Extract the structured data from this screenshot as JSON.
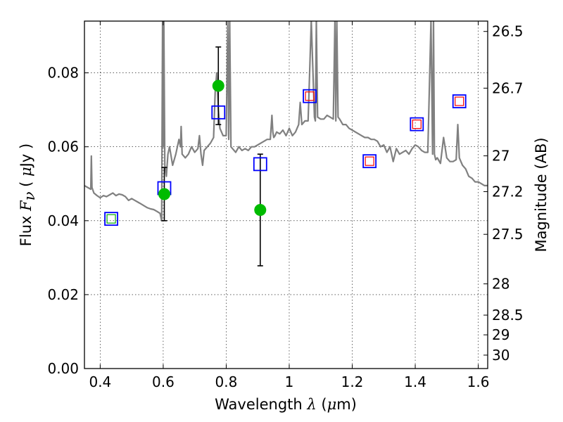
{
  "chart_data": {
    "type": "scatter",
    "xlabel": {
      "prefix": "Wavelength ",
      "symbol": "λ",
      "unit_open": " (",
      "unit_mu": "μ",
      "unit_rest": "m)"
    },
    "ylabel": {
      "prefix": "Flux ",
      "symbol_main": "F",
      "symbol_sub": "ν",
      "unit_open": " ( ",
      "unit_mu": "μ",
      "unit_rest": "Jy )"
    },
    "y2label": "Magnitude (AB)",
    "xlim": [
      0.35,
      1.63
    ],
    "ylim": [
      0.0,
      0.094
    ],
    "x_ticks": [
      {
        "value": 0.4,
        "label": "0.4"
      },
      {
        "value": 0.6,
        "label": "0.6"
      },
      {
        "value": 0.8,
        "label": "0.8"
      },
      {
        "value": 1.0,
        "label": "1"
      },
      {
        "value": 1.2,
        "label": "1.2"
      },
      {
        "value": 1.4,
        "label": "1.4"
      },
      {
        "value": 1.6,
        "label": "1.6"
      }
    ],
    "y_ticks": [
      {
        "value": 0.0,
        "label": "0.00"
      },
      {
        "value": 0.02,
        "label": "0.02"
      },
      {
        "value": 0.04,
        "label": "0.04"
      },
      {
        "value": 0.06,
        "label": "0.06"
      },
      {
        "value": 0.08,
        "label": "0.08"
      }
    ],
    "y2_ticks": [
      {
        "mag": 26.5,
        "label": "26.5"
      },
      {
        "mag": 26.7,
        "label": "26.7"
      },
      {
        "mag": 27.0,
        "label": "27"
      },
      {
        "mag": 27.2,
        "label": "27.2"
      },
      {
        "mag": 27.5,
        "label": "27.5"
      },
      {
        "mag": 28.0,
        "label": "28"
      },
      {
        "mag": 28.5,
        "label": "28.5"
      },
      {
        "mag": 29.0,
        "label": "29"
      },
      {
        "mag": 30.0,
        "label": "30"
      }
    ],
    "grid": true,
    "series": [
      {
        "kind": "spectrum-line",
        "color": "#808080",
        "x": [
          0.35,
          0.36,
          0.37,
          0.372,
          0.374,
          0.38,
          0.39,
          0.4,
          0.41,
          0.42,
          0.43,
          0.44,
          0.45,
          0.46,
          0.47,
          0.48,
          0.49,
          0.5,
          0.51,
          0.52,
          0.53,
          0.54,
          0.55,
          0.56,
          0.57,
          0.58,
          0.59,
          0.595,
          0.598,
          0.6,
          0.602,
          0.605,
          0.61,
          0.615,
          0.62,
          0.63,
          0.64,
          0.65,
          0.655,
          0.657,
          0.66,
          0.67,
          0.68,
          0.69,
          0.7,
          0.71,
          0.715,
          0.72,
          0.725,
          0.73,
          0.74,
          0.75,
          0.76,
          0.765,
          0.77,
          0.775,
          0.78,
          0.79,
          0.8,
          0.805,
          0.808,
          0.811,
          0.815,
          0.82,
          0.83,
          0.84,
          0.85,
          0.86,
          0.87,
          0.88,
          0.89,
          0.9,
          0.91,
          0.92,
          0.93,
          0.94,
          0.945,
          0.948,
          0.951,
          0.955,
          0.96,
          0.97,
          0.98,
          0.99,
          1.0,
          1.01,
          1.02,
          1.03,
          1.035,
          1.04,
          1.05,
          1.06,
          1.07,
          1.08,
          1.083,
          1.086,
          1.09,
          1.1,
          1.11,
          1.12,
          1.13,
          1.14,
          1.145,
          1.148,
          1.151,
          1.155,
          1.16,
          1.17,
          1.18,
          1.19,
          1.2,
          1.21,
          1.22,
          1.23,
          1.24,
          1.25,
          1.26,
          1.27,
          1.28,
          1.29,
          1.3,
          1.31,
          1.32,
          1.33,
          1.34,
          1.35,
          1.36,
          1.37,
          1.38,
          1.39,
          1.4,
          1.41,
          1.42,
          1.43,
          1.44,
          1.45,
          1.455,
          1.458,
          1.461,
          1.465,
          1.47,
          1.48,
          1.49,
          1.5,
          1.51,
          1.52,
          1.53,
          1.535,
          1.54,
          1.545,
          1.55,
          1.56,
          1.57,
          1.58,
          1.59,
          1.6,
          1.61,
          1.62,
          1.63
        ],
        "y": [
          0.0495,
          0.049,
          0.0485,
          0.0575,
          0.049,
          0.0475,
          0.0468,
          0.0462,
          0.0468,
          0.0465,
          0.047,
          0.0475,
          0.0468,
          0.0472,
          0.047,
          0.0465,
          0.0455,
          0.046,
          0.0455,
          0.045,
          0.0445,
          0.044,
          0.0435,
          0.0432,
          0.043,
          0.0425,
          0.042,
          0.04,
          0.094,
          0.06,
          0.094,
          0.055,
          0.052,
          0.058,
          0.06,
          0.055,
          0.058,
          0.062,
          0.06,
          0.0655,
          0.058,
          0.057,
          0.058,
          0.06,
          0.0585,
          0.0595,
          0.063,
          0.058,
          0.055,
          0.059,
          0.06,
          0.061,
          0.0625,
          0.075,
          0.08,
          0.07,
          0.065,
          0.063,
          0.063,
          0.094,
          0.062,
          0.094,
          0.06,
          0.0595,
          0.0585,
          0.06,
          0.059,
          0.0595,
          0.059,
          0.06,
          0.06,
          0.0605,
          0.061,
          0.0615,
          0.062,
          0.062,
          0.0685,
          0.064,
          0.0625,
          0.063,
          0.064,
          0.0635,
          0.0645,
          0.063,
          0.065,
          0.063,
          0.064,
          0.066,
          0.072,
          0.066,
          0.067,
          0.067,
          0.094,
          0.068,
          0.067,
          0.094,
          0.068,
          0.0675,
          0.0675,
          0.0685,
          0.068,
          0.0675,
          0.094,
          0.067,
          0.094,
          0.068,
          0.0675,
          0.066,
          0.066,
          0.065,
          0.0645,
          0.064,
          0.0635,
          0.063,
          0.0625,
          0.0625,
          0.062,
          0.062,
          0.0615,
          0.06,
          0.0605,
          0.0585,
          0.06,
          0.056,
          0.0595,
          0.058,
          0.0585,
          0.059,
          0.058,
          0.0595,
          0.0605,
          0.06,
          0.059,
          0.0585,
          0.0585,
          0.094,
          0.058,
          0.094,
          0.058,
          0.0565,
          0.057,
          0.0555,
          0.0625,
          0.057,
          0.056,
          0.056,
          0.0565,
          0.066,
          0.057,
          0.056,
          0.055,
          0.054,
          0.052,
          0.0515,
          0.0505,
          0.0505,
          0.05,
          0.0495,
          0.0495
        ]
      },
      {
        "kind": "marker-points",
        "name": "blue-squares",
        "color": "#0000ff",
        "marker": "square-open",
        "x": [
          0.435,
          0.6035,
          0.775,
          0.908,
          1.065,
          1.255,
          1.405,
          1.54
        ],
        "y": [
          0.0405,
          0.0488,
          0.0693,
          0.0553,
          0.0737,
          0.0561,
          0.0661,
          0.0723
        ]
      },
      {
        "kind": "marker-points",
        "name": "red-squares",
        "color": "#ff0000",
        "marker": "square-open-small",
        "x": [
          1.065,
          1.255,
          1.405,
          1.54
        ],
        "y": [
          0.0737,
          0.0561,
          0.0661,
          0.0723
        ]
      },
      {
        "kind": "marker-points",
        "name": "green-square",
        "color": "#00aa00",
        "marker": "square-open-small",
        "x": [
          0.435
        ],
        "y": [
          0.0405
        ]
      },
      {
        "kind": "errorbar-points",
        "name": "green-circles",
        "color": "#00bb00",
        "error_color": "#000000",
        "marker": "circle-filled",
        "x": [
          0.6035,
          0.775,
          0.908
        ],
        "y": [
          0.0472,
          0.0765,
          0.0429
        ],
        "yerr_low": [
          0.0072,
          0.0105,
          0.0151
        ],
        "yerr_high": [
          0.0072,
          0.0105,
          0.0151
        ]
      }
    ]
  }
}
